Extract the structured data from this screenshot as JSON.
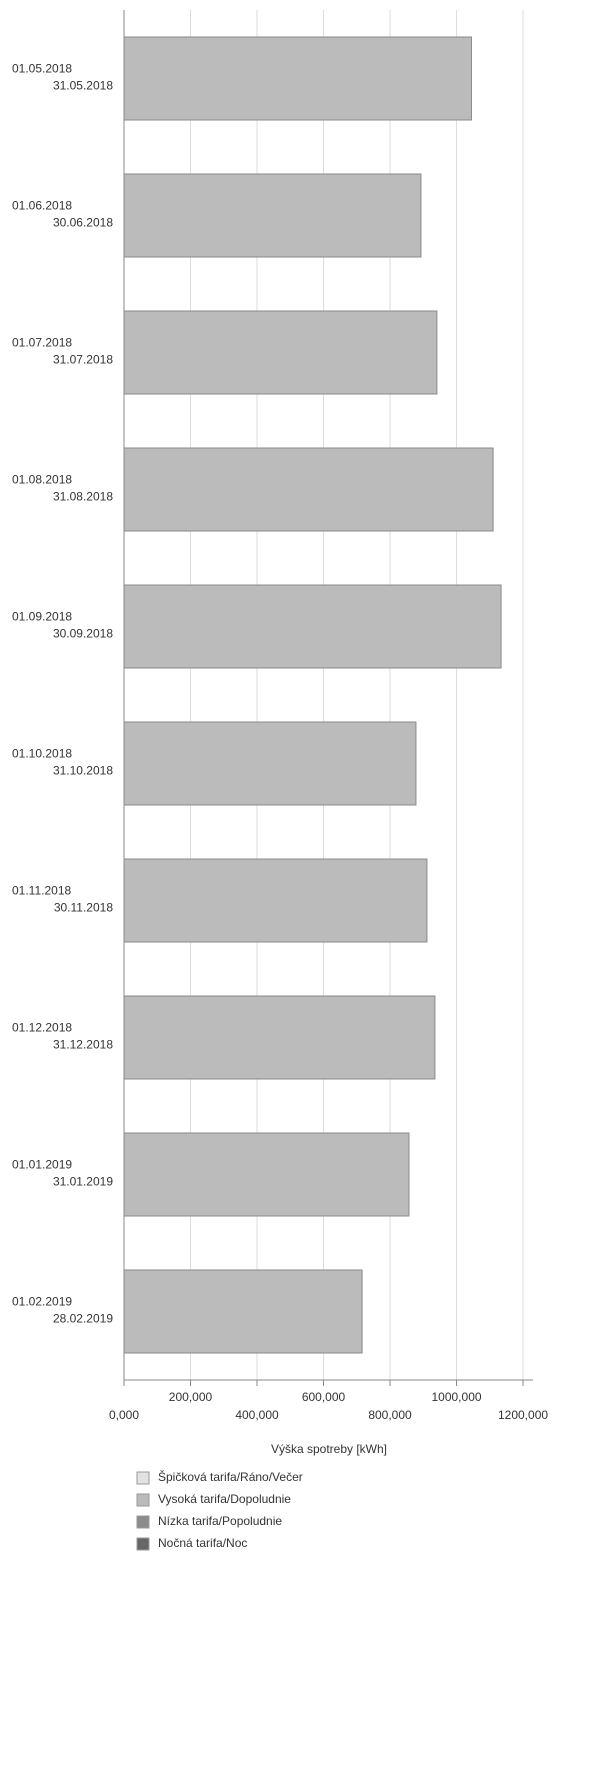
{
  "chart_data": {
    "type": "stacked-barh",
    "categories": [
      [
        "01.05.2018",
        "31.05.2018"
      ],
      [
        "01.06.2018",
        "30.06.2018"
      ],
      [
        "01.07.2018",
        "31.07.2018"
      ],
      [
        "01.08.2018",
        "31.08.2018"
      ],
      [
        "01.09.2018",
        "30.09.2018"
      ],
      [
        "01.10.2018",
        "31.10.2018"
      ],
      [
        "01.11.2018",
        "30.11.2018"
      ],
      [
        "01.12.2018",
        "31.12.2018"
      ],
      [
        "01.01.2019",
        "31.01.2019"
      ],
      [
        "01.02.2019",
        "28.02.2019"
      ]
    ],
    "series": [
      {
        "name": "Špičková tarifa/Ráno/Večer",
        "color": "#e2e2e2",
        "values": [
          0,
          0,
          0,
          0,
          0,
          0,
          0,
          0,
          0,
          0
        ]
      },
      {
        "name": "Vysoká tarifa/Dopoludnie",
        "color": "#bbbbbb",
        "values": [
          1045000,
          893000,
          941000,
          1110000,
          1134000,
          878000,
          911000,
          935000,
          857000,
          716000
        ]
      },
      {
        "name": "Nízka tarifa/Popoludnie",
        "color": "#8c8c8c",
        "values": [
          0,
          0,
          0,
          0,
          0,
          0,
          0,
          0,
          0,
          0
        ]
      },
      {
        "name": "Nočná tarifa/Noc",
        "color": "#666666",
        "values": [
          0,
          0,
          0,
          0,
          0,
          0,
          0,
          0,
          0,
          0
        ]
      }
    ],
    "xlim": [
      0,
      1230000
    ],
    "xticks": [
      {
        "value": 0,
        "label": "0,000"
      },
      {
        "value": 200000,
        "label": "200,000"
      },
      {
        "value": 400000,
        "label": "400,000"
      },
      {
        "value": 600000,
        "label": "600,000"
      },
      {
        "value": 800000,
        "label": "800,000"
      },
      {
        "value": 1000000,
        "label": "1000,000"
      },
      {
        "value": 1200000,
        "label": "1200,000"
      }
    ],
    "xlabel": "Výška spotreby [kWh]",
    "grid": true
  }
}
